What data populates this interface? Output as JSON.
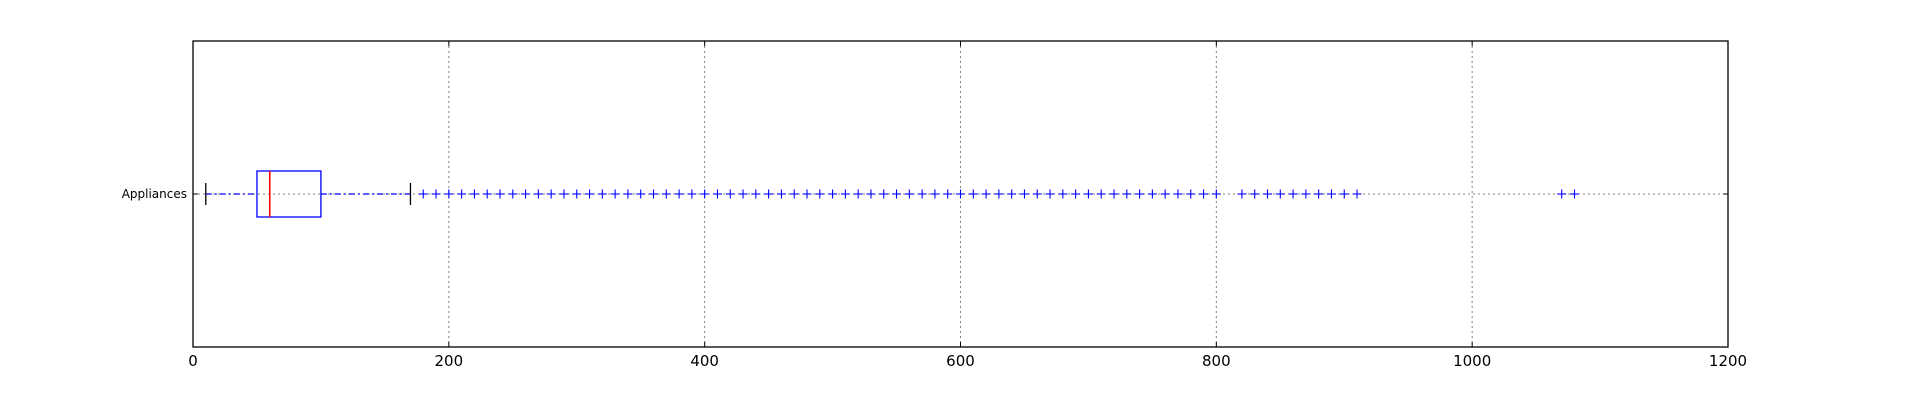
{
  "chart_data": {
    "type": "boxplot",
    "orientation": "horizontal",
    "title": "",
    "xlabel": "",
    "ylabel": "",
    "xlim": [
      0,
      1200
    ],
    "xticks": [
      0,
      200,
      400,
      600,
      800,
      1000,
      1200
    ],
    "xtick_labels": [
      "0",
      "200",
      "400",
      "600",
      "800",
      "1000",
      "1200"
    ],
    "grid": true,
    "categories": [
      "Appliances"
    ],
    "boxes": [
      {
        "label": "Appliances",
        "whisker_low": 10,
        "q1": 50,
        "median": 60,
        "q3": 100,
        "whisker_high": 170,
        "outliers": [
          180,
          190,
          200,
          210,
          220,
          230,
          240,
          250,
          260,
          270,
          280,
          290,
          300,
          310,
          320,
          330,
          340,
          350,
          360,
          370,
          380,
          390,
          400,
          410,
          420,
          430,
          440,
          450,
          460,
          470,
          480,
          490,
          500,
          510,
          520,
          530,
          540,
          550,
          560,
          570,
          580,
          590,
          600,
          610,
          620,
          630,
          640,
          650,
          660,
          670,
          680,
          690,
          700,
          710,
          720,
          730,
          740,
          750,
          760,
          770,
          780,
          790,
          800,
          820,
          830,
          840,
          850,
          860,
          870,
          880,
          890,
          900,
          910,
          1070,
          1080
        ]
      }
    ],
    "colors": {
      "box": "#0000ff",
      "median": "#ff0000",
      "whisker": "#0000ff",
      "cap": "#000000",
      "outlier": "#0000ff"
    }
  }
}
